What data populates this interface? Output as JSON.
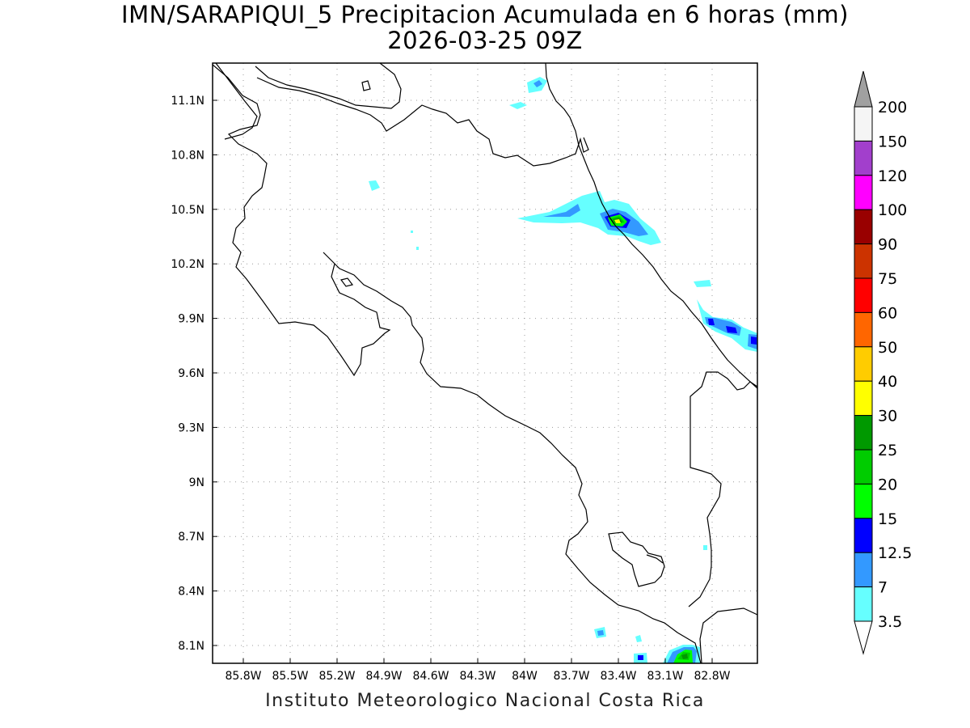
{
  "title_line1": "IMN/SARAPIQUI_5 Precipitacion Acumulada en 6 horas (mm)",
  "title_line2": "2026-03-25 09Z",
  "credit": "Instituto Meteorologico Nacional Costa Rica",
  "map": {
    "lon_range": [
      -86.05,
      -82.53
    ],
    "lat_range": [
      8.0,
      11.3
    ],
    "lon_ticks": [
      "85.8W",
      "85.5W",
      "85.2W",
      "84.9W",
      "84.6W",
      "84.3W",
      "84W",
      "83.7W",
      "83.4W",
      "83.1W",
      "82.8W"
    ],
    "lat_ticks": [
      "11.1N",
      "10.8N",
      "10.5N",
      "10.2N",
      "9.9N",
      "9.6N",
      "9.3N",
      "9N",
      "8.7N",
      "8.4N",
      "8.1N"
    ],
    "grid": "dotted"
  },
  "colorbar": {
    "levels": [
      "200",
      "150",
      "120",
      "100",
      "90",
      "75",
      "60",
      "50",
      "40",
      "30",
      "25",
      "20",
      "15",
      "12.5",
      "7",
      "3.5"
    ],
    "colors": [
      "#a0a0a0",
      "#f5f5f5",
      "#a23fcc",
      "#ff00ff",
      "#990000",
      "#cc3300",
      "#ff0000",
      "#ff6600",
      "#ffcc00",
      "#ffff00",
      "#009900",
      "#00cc00",
      "#00ff00",
      "#0000ff",
      "#3399ff",
      "#66ffff"
    ]
  }
}
